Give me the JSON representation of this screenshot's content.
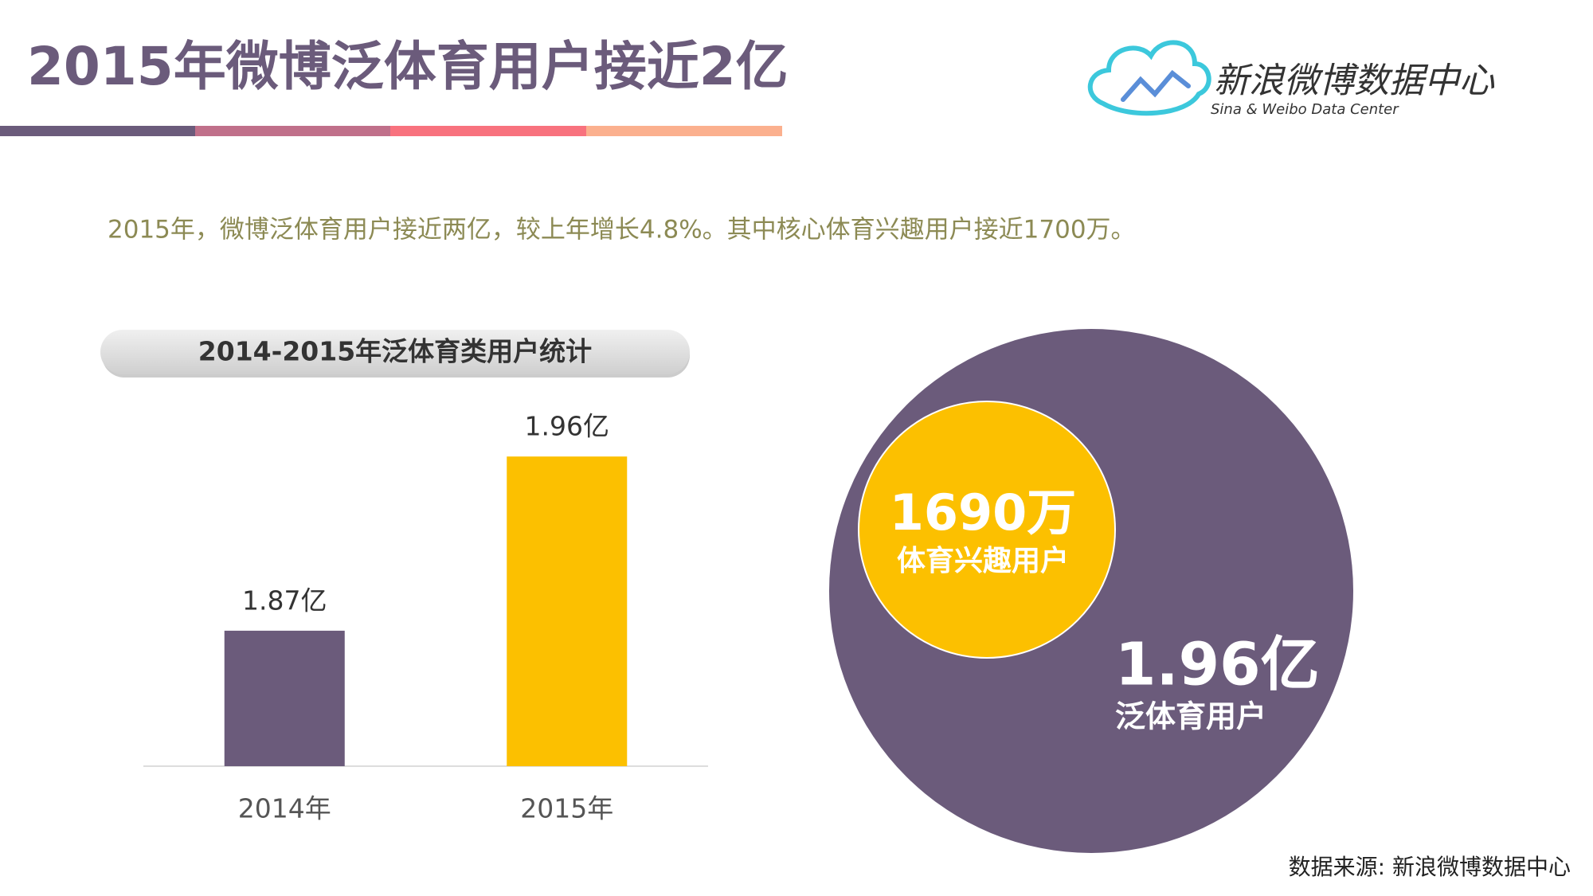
{
  "header": {
    "title": "2015年微博泛体育用户接近2亿",
    "logo_name": "新浪微博数据中心",
    "logo_subtitle": "Sina & Weibo Data Center"
  },
  "summary": "2015年，微博泛体育用户接近两亿，较上年增长4.8%。其中核心体育兴趣用户接近1700万。",
  "chart_data": {
    "type": "bar",
    "title": "2014-2015年泛体育类用户统计",
    "categories": [
      "2014年",
      "2015年"
    ],
    "values": [
      1.87,
      1.96
    ],
    "value_labels": [
      "1.87亿",
      "1.96亿"
    ],
    "colors": [
      "#6b5b7b",
      "#fcc000"
    ],
    "ylim": [
      1.8,
      2.0
    ]
  },
  "bubbles": {
    "outer": {
      "value": "1.96亿",
      "label": "泛体育用户"
    },
    "inner": {
      "value": "1690万",
      "label": "体育兴趣用户"
    }
  },
  "source": "数据来源: 新浪微博数据中心"
}
